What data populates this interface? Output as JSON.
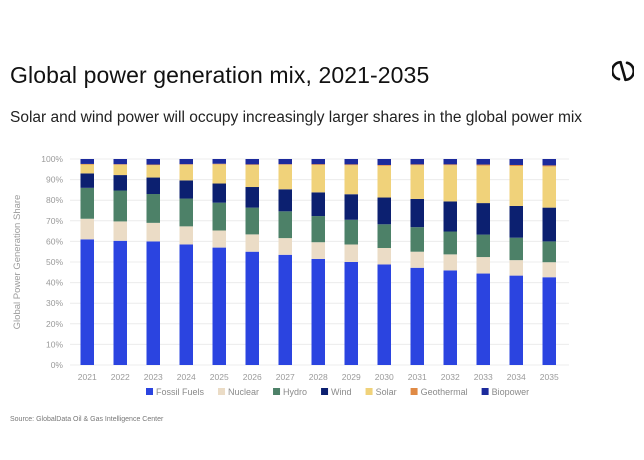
{
  "header": {
    "title": "Global power generation mix, 2021-2035",
    "subtitle": "Solar and wind power will occupy increasingly larger shares in the global power mix",
    "logo_icon": "globaldata-logo-icon"
  },
  "footer": {
    "source": "Source: GlobalData Oil & Gas Intelligence Center"
  },
  "chart_data": {
    "type": "bar",
    "stacked": true,
    "title": "Global power generation mix, 2021-2035",
    "subtitle": "Solar and wind power will occupy increasingly larger shares in the global power mix",
    "xlabel": "",
    "ylabel": "Global Power Generation Share",
    "ylim": [
      0,
      100
    ],
    "yticks": [
      "0%",
      "10%",
      "20%",
      "30%",
      "40%",
      "50%",
      "60%",
      "70%",
      "80%",
      "90%",
      "100%"
    ],
    "grid": true,
    "legend_position": "bottom",
    "categories": [
      "2021",
      "2022",
      "2023",
      "2024",
      "2025",
      "2026",
      "2027",
      "2028",
      "2029",
      "2030",
      "2031",
      "2032",
      "2033",
      "2034",
      "2035"
    ],
    "series": [
      {
        "name": "Fossil Fuels",
        "color": "#2b44e0",
        "values": [
          61.0,
          60.3,
          60.0,
          58.5,
          57.0,
          55.0,
          53.5,
          51.5,
          50.0,
          48.8,
          47.2,
          45.9,
          44.4,
          43.4,
          42.6
        ]
      },
      {
        "name": "Nuclear",
        "color": "#ebdcc6",
        "values": [
          10.0,
          9.4,
          9.0,
          8.8,
          8.3,
          8.4,
          8.1,
          8.1,
          8.5,
          8.0,
          7.8,
          7.8,
          8.0,
          7.5,
          7.3
        ]
      },
      {
        "name": "Hydro",
        "color": "#4d8168",
        "values": [
          15.0,
          15.0,
          14.0,
          13.5,
          13.5,
          13.0,
          13.0,
          12.7,
          12.0,
          11.5,
          11.9,
          11.1,
          10.9,
          10.9,
          10.1
        ]
      },
      {
        "name": "Wind",
        "color": "#0c2070",
        "values": [
          7.0,
          7.5,
          8.0,
          8.8,
          9.3,
          10.0,
          10.7,
          11.5,
          12.4,
          13.0,
          13.7,
          14.6,
          15.3,
          15.4,
          16.4
        ]
      },
      {
        "name": "Solar",
        "color": "#f0d27a",
        "values": [
          4.3,
          5.0,
          6.0,
          7.6,
          9.3,
          10.7,
          11.9,
          13.3,
          14.1,
          15.4,
          16.4,
          17.6,
          18.2,
          19.4,
          20.0
        ]
      },
      {
        "name": "Geothermal",
        "color": "#e08a45",
        "values": [
          0.3,
          0.3,
          0.3,
          0.3,
          0.3,
          0.3,
          0.3,
          0.4,
          0.4,
          0.4,
          0.4,
          0.4,
          0.5,
          0.5,
          0.5
        ]
      },
      {
        "name": "Biopower",
        "color": "#1c2a9c",
        "values": [
          2.4,
          2.5,
          2.7,
          2.5,
          2.3,
          2.6,
          2.5,
          2.5,
          2.6,
          2.9,
          2.6,
          2.6,
          2.7,
          2.9,
          3.1
        ]
      }
    ]
  }
}
